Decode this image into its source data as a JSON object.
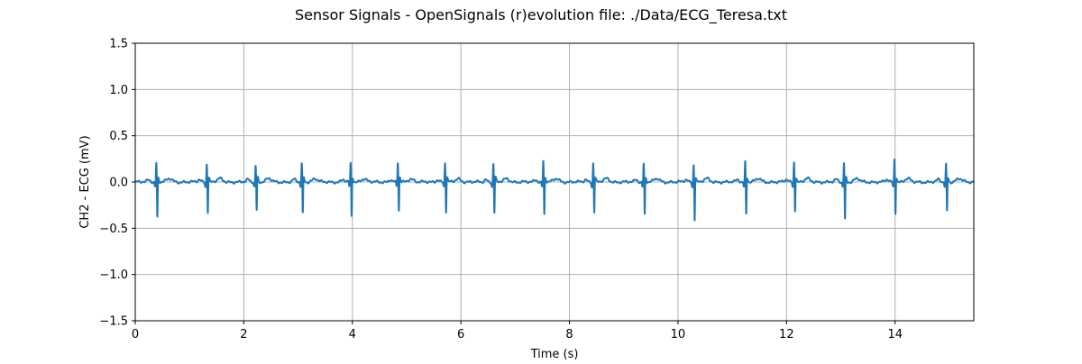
{
  "chart_data": {
    "type": "line",
    "title": "Sensor Signals - OpenSignals (r)evolution file: ./Data/ECG_Teresa.txt",
    "xlabel": "Time (s)",
    "ylabel": "CH2 - ECG (mV)",
    "xlim": [
      0,
      15.45
    ],
    "ylim": [
      -1.5,
      1.5
    ],
    "xticks": [
      0,
      2,
      4,
      6,
      8,
      10,
      12,
      14
    ],
    "xtick_labels": [
      "0",
      "2",
      "4",
      "6",
      "8",
      "10",
      "12",
      "14"
    ],
    "yticks": [
      -1.5,
      -1.0,
      -0.5,
      0.0,
      0.5,
      1.0,
      1.5
    ],
    "ytick_labels": [
      "−1.5",
      "−1.0",
      "−0.5",
      "0.0",
      "0.5",
      "1.0",
      "1.5"
    ],
    "grid": true,
    "line_color": "#1f77b4",
    "series": [
      {
        "baseline": 0.0,
        "beats": [
          {
            "t": 0.4,
            "r": 0.22,
            "s": -0.4
          },
          {
            "t": 1.33,
            "r": 0.21,
            "s": -0.34
          },
          {
            "t": 2.23,
            "r": 0.19,
            "s": -0.32
          },
          {
            "t": 3.08,
            "r": 0.21,
            "s": -0.36
          },
          {
            "t": 3.98,
            "r": 0.21,
            "s": -0.39
          },
          {
            "t": 4.85,
            "r": 0.22,
            "s": -0.33
          },
          {
            "t": 5.72,
            "r": 0.22,
            "s": -0.34
          },
          {
            "t": 6.61,
            "r": 0.21,
            "s": -0.35
          },
          {
            "t": 7.53,
            "r": 0.24,
            "s": -0.37
          },
          {
            "t": 8.45,
            "r": 0.22,
            "s": -0.34
          },
          {
            "t": 9.38,
            "r": 0.21,
            "s": -0.37
          },
          {
            "t": 10.3,
            "r": 0.2,
            "s": -0.42
          },
          {
            "t": 11.25,
            "r": 0.23,
            "s": -0.36
          },
          {
            "t": 12.15,
            "r": 0.23,
            "s": -0.32
          },
          {
            "t": 13.07,
            "r": 0.22,
            "s": -0.42
          },
          {
            "t": 14.0,
            "r": 0.26,
            "s": -0.35
          },
          {
            "t": 14.95,
            "r": 0.2,
            "s": -0.33
          }
        ]
      }
    ]
  }
}
